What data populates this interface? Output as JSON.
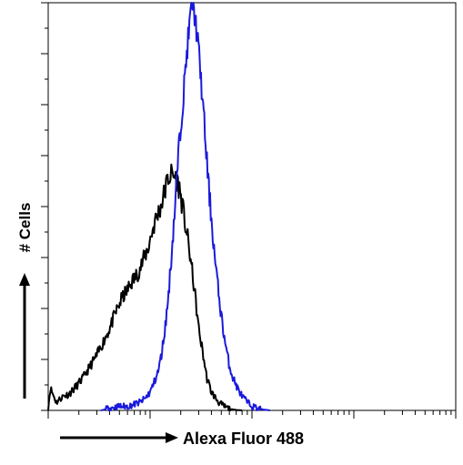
{
  "chart_data": {
    "type": "histogram",
    "xlabel": "Alexa Fluor 488",
    "ylabel": "# Cells",
    "x_scale": "log",
    "xlim": [
      1,
      10000
    ],
    "ylim": [
      0,
      100
    ],
    "y_major_ticks": [
      0,
      12.5,
      25,
      37.5,
      50,
      62.5,
      75,
      87.5,
      100
    ],
    "grid": false,
    "legend": "none",
    "series": [
      {
        "color": "#000000",
        "x": [
          1.0,
          1.05,
          1.2,
          1.4,
          1.6,
          1.9,
          2.2,
          2.6,
          3.0,
          3.5,
          4.0,
          4.6,
          5.3,
          6.0,
          6.6,
          7.3,
          8.0,
          8.8,
          9.6,
          10.5,
          11.6,
          12.7,
          13.9,
          15.0,
          16.4,
          18.0,
          19.6,
          21.4,
          23.4,
          25.6,
          28.0,
          30.0,
          33.0,
          36.0,
          40.0,
          44.0,
          48.0,
          53.0,
          60.0,
          70.0,
          80.0
        ],
        "y": [
          0.5,
          5.5,
          2.0,
          3.5,
          4.0,
          6.0,
          8.0,
          11.0,
          13.5,
          17.0,
          20.0,
          24.0,
          27.5,
          29.5,
          31.5,
          33.0,
          35.0,
          37.5,
          40.0,
          44.0,
          47.5,
          50.0,
          53.5,
          57.0,
          58.0,
          57.0,
          54.0,
          48.0,
          42.0,
          35.0,
          27.0,
          20.0,
          14.0,
          8.0,
          4.5,
          3.0,
          1.8,
          1.0,
          0.4,
          0.1,
          0.0
        ]
      },
      {
        "color": "#1a1adc",
        "x": [
          3.3,
          4.0,
          5.0,
          6.0,
          7.0,
          8.0,
          9.0,
          10.0,
          11.0,
          12.0,
          13.0,
          14.0,
          15.0,
          16.0,
          17.0,
          18.0,
          19.0,
          20.0,
          21.0,
          22.0,
          23.0,
          24.0,
          25.0,
          26.0,
          27.0,
          29.0,
          31.0,
          33.0,
          35.0,
          37.0,
          40.0,
          43.0,
          46.0,
          49.0,
          52.0,
          56.0,
          60.0,
          65.0,
          72.0,
          80.0,
          90.0,
          100.0,
          115.0,
          130.0,
          150.0
        ],
        "y": [
          0.0,
          0.5,
          1.0,
          1.0,
          1.5,
          2.0,
          3.0,
          4.5,
          7.0,
          9.5,
          14.0,
          20.0,
          27.0,
          36.0,
          45.0,
          54.0,
          63.0,
          70.0,
          76.0,
          82.0,
          88.0,
          93.0,
          97.0,
          100.0,
          98.0,
          92.0,
          84.0,
          75.0,
          66.0,
          57.0,
          47.0,
          38.0,
          31.0,
          25.0,
          20.0,
          15.0,
          11.0,
          8.0,
          5.5,
          3.5,
          2.0,
          1.0,
          0.5,
          0.2,
          0.0
        ]
      }
    ]
  }
}
